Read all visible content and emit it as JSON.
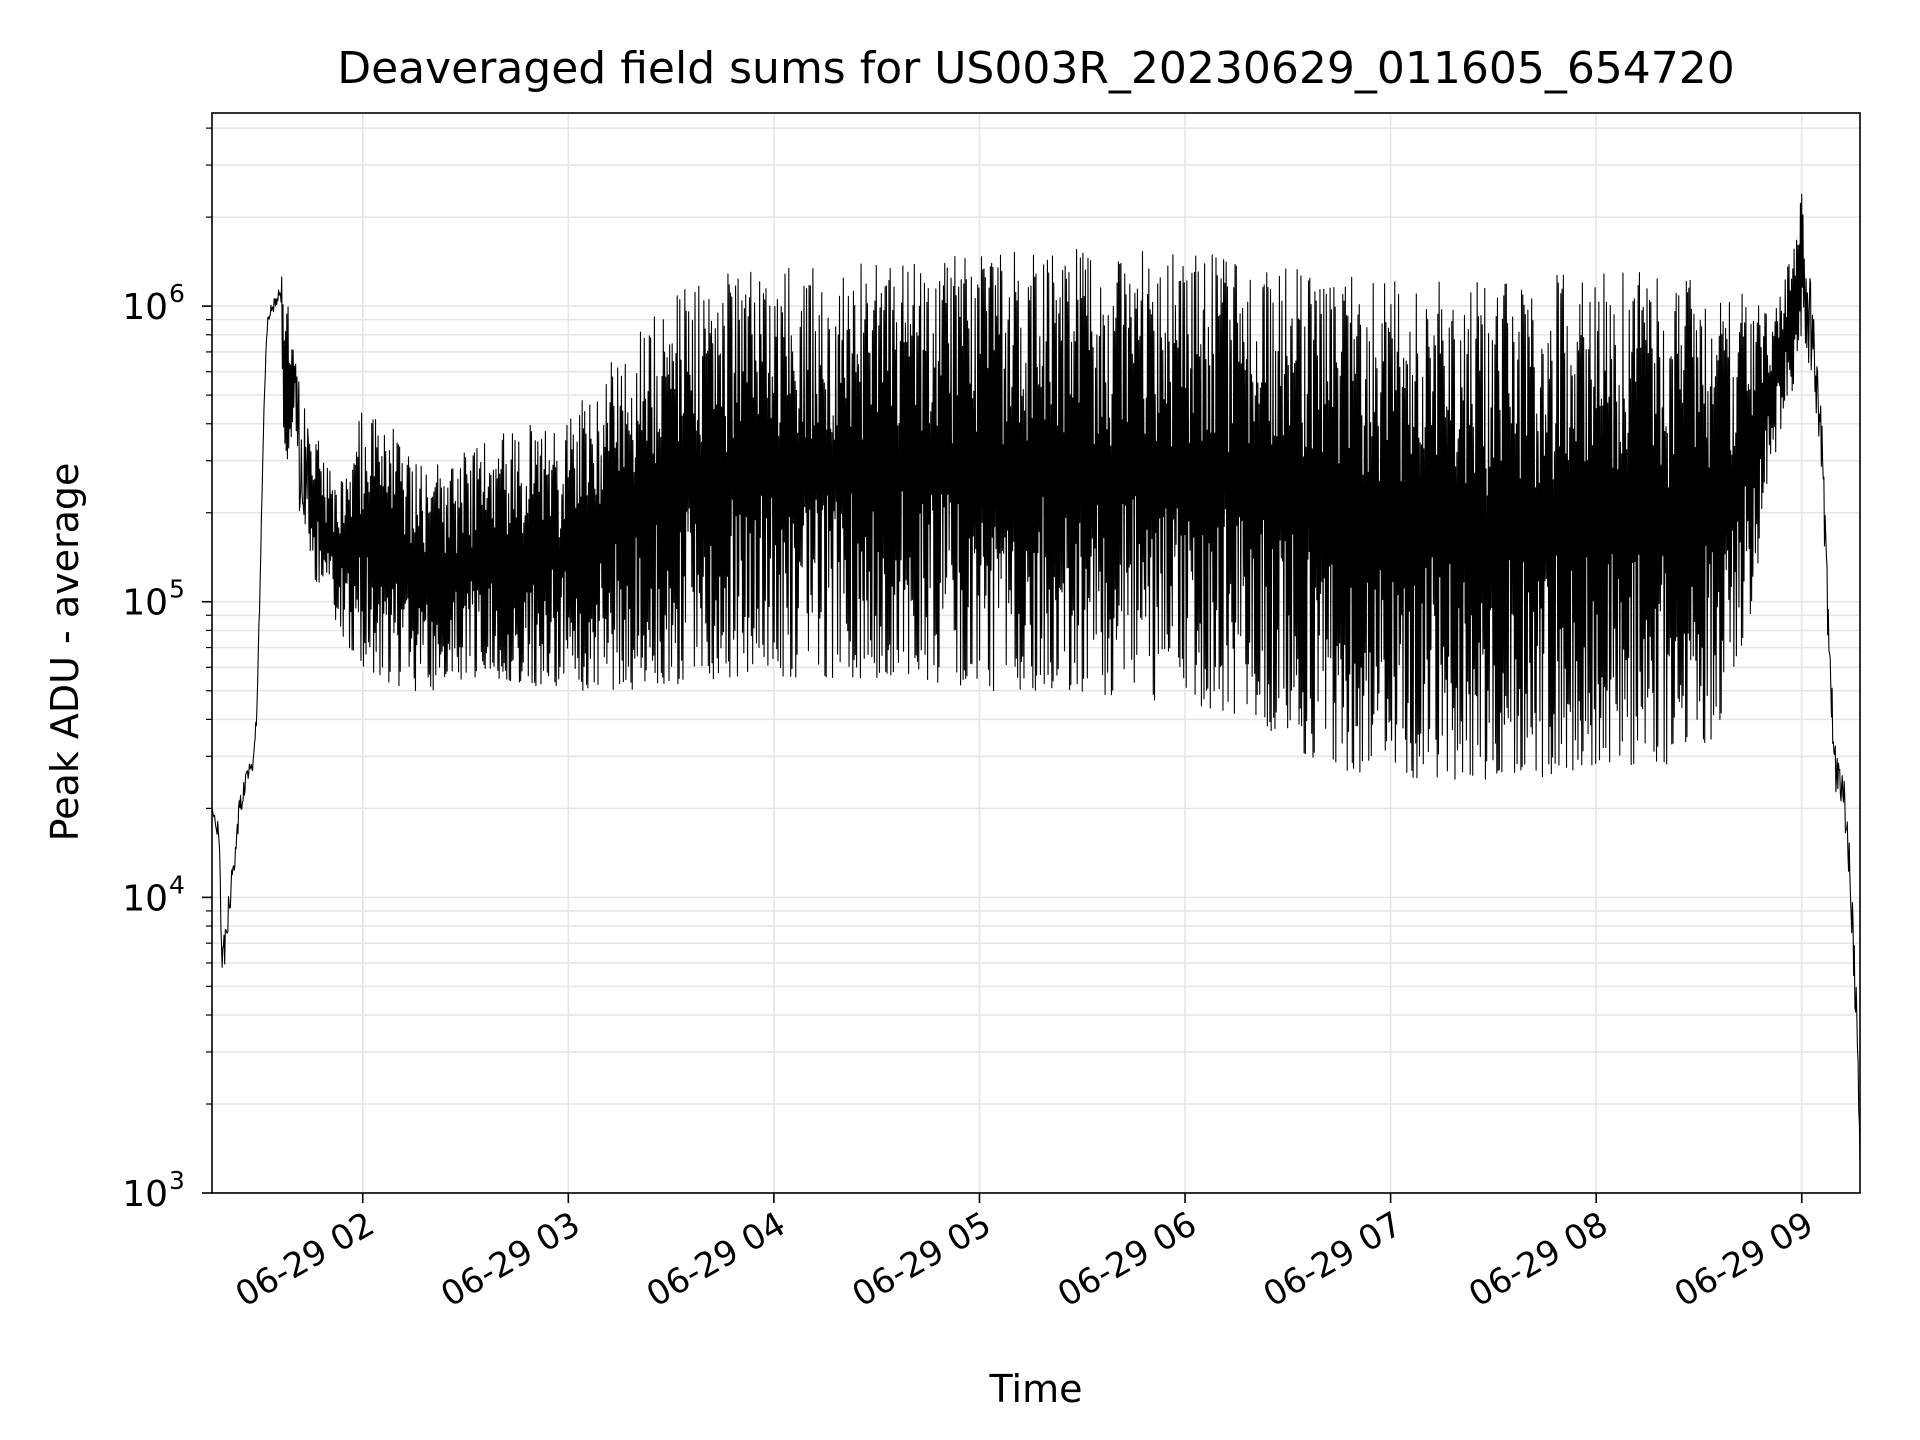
{
  "chart_data": {
    "type": "line",
    "title": "Deaveraged field sums for US003R_20230629_011605_654720",
    "xlabel": "Time",
    "ylabel": "Peak ADU - average",
    "y_scale": "log",
    "ylim": [
      1000,
      4500000
    ],
    "xlim": [
      "2023-06-29 01:16",
      "2023-06-29 09:17"
    ],
    "x_ticks": [
      {
        "t": "2023-06-29 02:00",
        "label": "06-29 02"
      },
      {
        "t": "2023-06-29 03:00",
        "label": "06-29 03"
      },
      {
        "t": "2023-06-29 04:00",
        "label": "06-29 04"
      },
      {
        "t": "2023-06-29 05:00",
        "label": "06-29 05"
      },
      {
        "t": "2023-06-29 06:00",
        "label": "06-29 06"
      },
      {
        "t": "2023-06-29 07:00",
        "label": "06-29 07"
      },
      {
        "t": "2023-06-29 08:00",
        "label": "06-29 08"
      },
      {
        "t": "2023-06-29 09:00",
        "label": "06-29 09"
      }
    ],
    "y_ticks": [
      {
        "value": 1000,
        "base": "10",
        "exp": "3"
      },
      {
        "value": 10000,
        "base": "10",
        "exp": "4"
      },
      {
        "value": 100000,
        "base": "10",
        "exp": "5"
      },
      {
        "value": 1000000,
        "base": "10",
        "exp": "6"
      }
    ],
    "grid": true,
    "line_color": "#000000",
    "grid_color": "#e6e6e6",
    "series": [
      {
        "x": [
          "2023-06-29 01:16",
          "2023-06-29 01:18",
          "2023-06-29 01:19",
          "2023-06-29 01:20",
          "2023-06-29 01:22",
          "2023-06-29 01:24",
          "2023-06-29 01:26",
          "2023-06-29 01:28",
          "2023-06-29 01:29",
          "2023-06-29 01:30",
          "2023-06-29 01:31",
          "2023-06-29 01:32",
          "2023-06-29 01:33",
          "2023-06-29 01:35",
          "2023-06-29 01:36",
          "2023-06-29 01:37",
          "2023-06-29 01:38",
          "2023-06-29 01:40",
          "2023-06-29 01:42",
          "2023-06-29 01:44",
          "2023-06-29 01:46",
          "2023-06-29 01:48",
          "2023-06-29 01:50",
          "2023-06-29 01:53",
          "2023-06-29 01:56",
          "2023-06-29 02:00",
          "2023-06-29 02:05",
          "2023-06-29 02:10",
          "2023-06-29 02:15",
          "2023-06-29 02:20",
          "2023-06-29 02:30",
          "2023-06-29 02:40",
          "2023-06-29 02:50",
          "2023-06-29 03:00",
          "2023-06-29 03:15",
          "2023-06-29 03:30",
          "2023-06-29 03:45",
          "2023-06-29 04:00",
          "2023-06-29 04:20",
          "2023-06-29 04:40",
          "2023-06-29 05:00",
          "2023-06-29 05:20",
          "2023-06-29 05:40",
          "2023-06-29 06:00",
          "2023-06-29 06:20",
          "2023-06-29 06:40",
          "2023-06-29 07:00",
          "2023-06-29 07:20",
          "2023-06-29 07:40",
          "2023-06-29 08:00",
          "2023-06-29 08:20",
          "2023-06-29 08:35",
          "2023-06-29 08:45",
          "2023-06-29 08:52",
          "2023-06-29 08:57",
          "2023-06-29 09:00",
          "2023-06-29 09:03",
          "2023-06-29 09:06",
          "2023-06-29 09:08",
          "2023-06-29 09:10",
          "2023-06-29 09:12",
          "2023-06-29 09:14",
          "2023-06-29 09:16",
          "2023-06-29 09:17"
        ],
        "hi": [
          20000,
          18000,
          7000,
          9000,
          13000,
          22000,
          27000,
          30000,
          45000,
          120000,
          400000,
          900000,
          1000000,
          1100000,
          1200000,
          1400000,
          1200000,
          700000,
          500000,
          450000,
          380000,
          350000,
          300000,
          280000,
          260000,
          500000,
          400000,
          380000,
          350000,
          300000,
          320000,
          380000,
          400000,
          420000,
          700000,
          1100000,
          1300000,
          1400000,
          1450000,
          1450000,
          1500000,
          1550000,
          1600000,
          1550000,
          1400000,
          1300000,
          1250000,
          1200000,
          1250000,
          1300000,
          1300000,
          1200000,
          1100000,
          1000000,
          1500000,
          2500000,
          1100000,
          400000,
          80000,
          30000,
          28000,
          15000,
          5000,
          1500
        ],
        "lo": [
          20000,
          14000,
          5300,
          6000,
          11000,
          17000,
          24000,
          27000,
          38000,
          100000,
          350000,
          800000,
          900000,
          1000000,
          950000,
          350000,
          300000,
          250000,
          180000,
          150000,
          120000,
          100000,
          90000,
          80000,
          70000,
          60000,
          55000,
          52000,
          50000,
          50000,
          55000,
          55000,
          52000,
          50000,
          50000,
          52000,
          55000,
          55000,
          55000,
          55000,
          50000,
          50000,
          48000,
          45000,
          40000,
          28000,
          25000,
          25000,
          25000,
          28000,
          28000,
          35000,
          90000,
          300000,
          500000,
          700000,
          600000,
          250000,
          50000,
          22000,
          20000,
          10000,
          3000,
          1000
        ]
      }
    ]
  }
}
